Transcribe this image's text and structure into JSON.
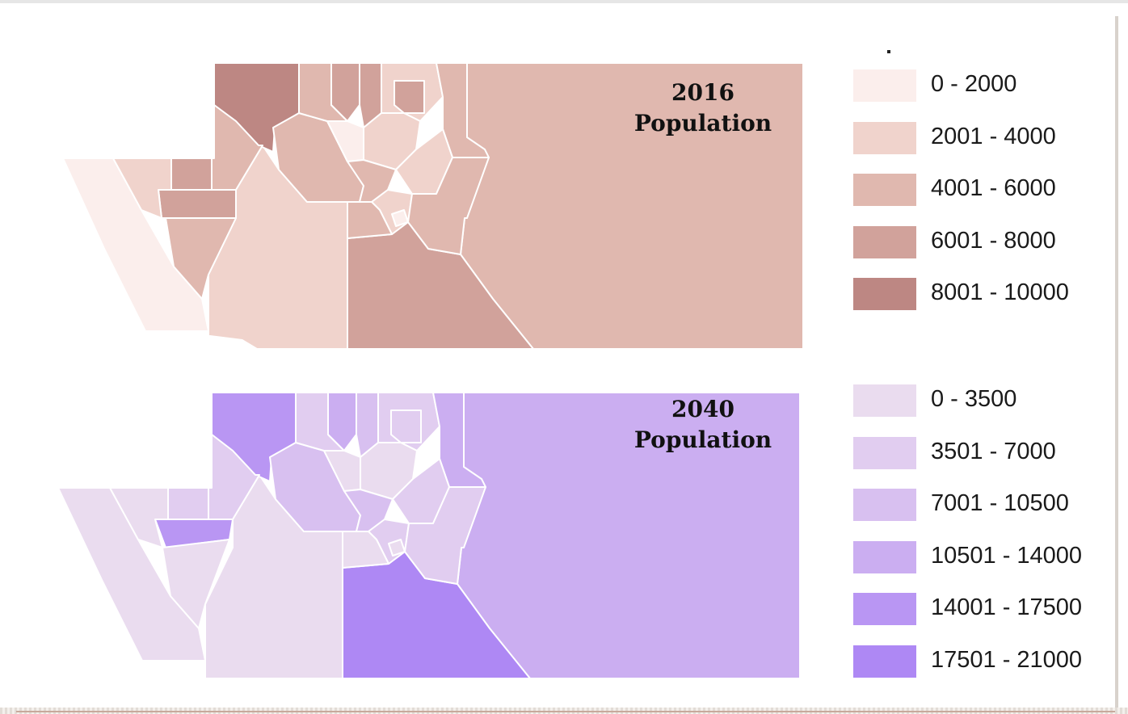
{
  "maps": [
    {
      "year": "2016",
      "label": "Population",
      "zone_colors": {
        "lightest": "#fbeeec",
        "light": "#f0d3cc",
        "medium": "#e0b8af",
        "dark": "#d1a29b",
        "darkest": "#bd8783"
      },
      "legend": [
        {
          "range": "0 - 2000",
          "color": "#fbeeec"
        },
        {
          "range": "2001 - 4000",
          "color": "#f0d3cc"
        },
        {
          "range": "4001 - 6000",
          "color": "#e0b8af"
        },
        {
          "range": "6001 - 8000",
          "color": "#d1a29b"
        },
        {
          "range": "8001 - 10000",
          "color": "#bd8783"
        }
      ]
    },
    {
      "year": "2040",
      "label": "Population",
      "zone_colors": {
        "lightest": "#eadcef",
        "light": "#e1cdf0",
        "medium": "#d8c0f0",
        "darkish": "#cbaef1",
        "dark": "#b996f3",
        "darkest": "#ae88f4"
      },
      "legend": [
        {
          "range": "0 - 3500",
          "color": "#eadcef"
        },
        {
          "range": "3501 - 7000",
          "color": "#e1cdf0"
        },
        {
          "range": "7001 - 10500",
          "color": "#d8c0f0"
        },
        {
          "range": "10501 - 14000",
          "color": "#cbaef1"
        },
        {
          "range": "14001 - 17500",
          "color": "#b996f3"
        },
        {
          "range": "17501 - 21000",
          "color": "#ae88f4"
        }
      ]
    }
  ]
}
